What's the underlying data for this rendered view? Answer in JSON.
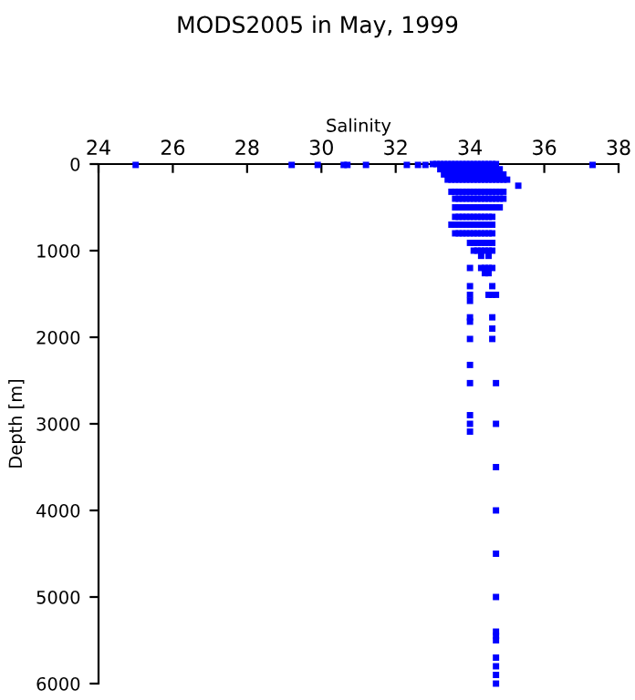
{
  "chart_data": {
    "type": "scatter",
    "title": "MODS2005 in May, 1999",
    "xlabel": "Salinity",
    "ylabel": "Depth [m]",
    "xlim": [
      24,
      38
    ],
    "xticks": [
      24,
      26,
      28,
      30,
      32,
      34,
      36,
      38
    ],
    "ylim": [
      6000,
      0
    ],
    "yticks": [
      0,
      1000,
      2000,
      3000,
      4000,
      5000,
      6000
    ],
    "grid": false,
    "marker": "square",
    "series": [
      {
        "color": "#0000ff",
        "x": [
          25.0,
          29.2,
          29.9,
          30.6,
          30.7,
          31.2,
          32.3,
          32.6,
          32.8,
          37.3,
          33.0,
          33.1,
          33.2,
          33.3,
          33.4,
          33.5,
          33.6,
          33.7,
          33.8,
          33.9,
          34.0,
          34.1,
          34.2,
          34.3,
          34.4,
          34.5,
          34.6,
          34.7,
          33.2,
          33.3,
          33.4,
          33.5,
          33.6,
          33.7,
          33.8,
          33.9,
          34.0,
          34.1,
          34.2,
          34.3,
          34.4,
          34.5,
          34.6,
          34.7,
          34.8,
          33.3,
          33.4,
          33.5,
          33.6,
          33.7,
          33.8,
          33.9,
          34.0,
          34.1,
          34.2,
          34.3,
          34.4,
          34.5,
          34.6,
          34.7,
          34.8,
          34.9,
          33.4,
          33.5,
          33.6,
          33.7,
          33.8,
          33.9,
          34.0,
          34.1,
          34.2,
          34.3,
          34.4,
          34.5,
          34.6,
          34.7,
          34.8,
          34.9,
          35.0,
          35.3,
          33.5,
          33.6,
          33.7,
          33.8,
          33.9,
          34.0,
          34.1,
          34.2,
          34.3,
          34.4,
          34.5,
          34.6,
          34.7,
          34.8,
          34.9,
          33.6,
          33.7,
          33.8,
          33.9,
          34.0,
          34.1,
          34.2,
          34.3,
          34.4,
          34.5,
          34.6,
          34.7,
          34.8,
          34.9,
          33.6,
          33.7,
          33.8,
          33.9,
          34.0,
          34.1,
          34.2,
          34.3,
          34.4,
          34.5,
          34.6,
          34.7,
          34.8,
          33.6,
          33.7,
          33.8,
          33.9,
          34.0,
          34.1,
          34.2,
          34.3,
          34.4,
          34.5,
          34.6,
          33.5,
          33.6,
          33.7,
          33.8,
          33.9,
          34.0,
          34.1,
          34.2,
          34.3,
          34.4,
          34.5,
          34.6,
          33.6,
          33.7,
          33.8,
          33.9,
          34.0,
          34.1,
          34.2,
          34.3,
          34.4,
          34.5,
          34.6,
          34.0,
          34.1,
          34.2,
          34.3,
          34.4,
          34.5,
          34.6,
          34.1,
          34.2,
          34.3,
          34.4,
          34.5,
          34.6,
          34.3,
          34.5,
          34.0,
          34.3,
          34.4,
          34.5,
          34.6,
          34.4,
          34.5,
          34.0,
          34.6,
          34.0,
          34.5,
          34.6,
          34.7,
          34.0,
          34.0,
          34.6,
          34.0,
          34.6,
          34.0,
          34.6,
          34.0,
          34.0,
          34.7,
          34.0,
          34.0,
          34.7,
          34.0,
          34.7,
          34.7,
          34.7,
          34.7,
          34.7,
          34.7,
          34.7,
          34.7,
          34.7,
          34.7,
          34.7
        ],
        "values": [
          10,
          10,
          10,
          10,
          10,
          10,
          10,
          10,
          10,
          10,
          0,
          0,
          0,
          0,
          0,
          0,
          0,
          0,
          0,
          0,
          0,
          0,
          0,
          0,
          0,
          0,
          0,
          0,
          60,
          60,
          60,
          60,
          60,
          60,
          60,
          60,
          60,
          60,
          60,
          60,
          60,
          60,
          60,
          60,
          60,
          120,
          120,
          120,
          120,
          120,
          120,
          120,
          120,
          120,
          120,
          120,
          120,
          120,
          120,
          120,
          120,
          120,
          180,
          180,
          180,
          180,
          180,
          180,
          180,
          180,
          180,
          180,
          180,
          180,
          180,
          180,
          180,
          180,
          180,
          250,
          320,
          320,
          320,
          320,
          320,
          320,
          320,
          320,
          320,
          320,
          320,
          320,
          320,
          320,
          320,
          400,
          400,
          400,
          400,
          400,
          400,
          400,
          400,
          400,
          400,
          400,
          400,
          400,
          400,
          500,
          500,
          500,
          500,
          500,
          500,
          500,
          500,
          500,
          500,
          500,
          500,
          500,
          610,
          610,
          610,
          610,
          610,
          610,
          610,
          610,
          610,
          610,
          610,
          700,
          700,
          700,
          700,
          700,
          700,
          700,
          700,
          700,
          700,
          700,
          700,
          800,
          800,
          800,
          800,
          800,
          800,
          800,
          800,
          800,
          800,
          800,
          910,
          910,
          910,
          910,
          910,
          910,
          910,
          1000,
          1000,
          1000,
          1000,
          1000,
          1000,
          1060,
          1060,
          1200,
          1200,
          1200,
          1200,
          1200,
          1260,
          1260,
          1410,
          1410,
          1510,
          1510,
          1510,
          1510,
          1580,
          1770,
          1770,
          1820,
          1900,
          2020,
          2020,
          2320,
          2530,
          2530,
          2900,
          3000,
          3000,
          3090,
          3500,
          4000,
          4500,
          5000,
          5400,
          5450,
          5500,
          5700,
          5800,
          5900,
          6000
        ]
      }
    ]
  }
}
